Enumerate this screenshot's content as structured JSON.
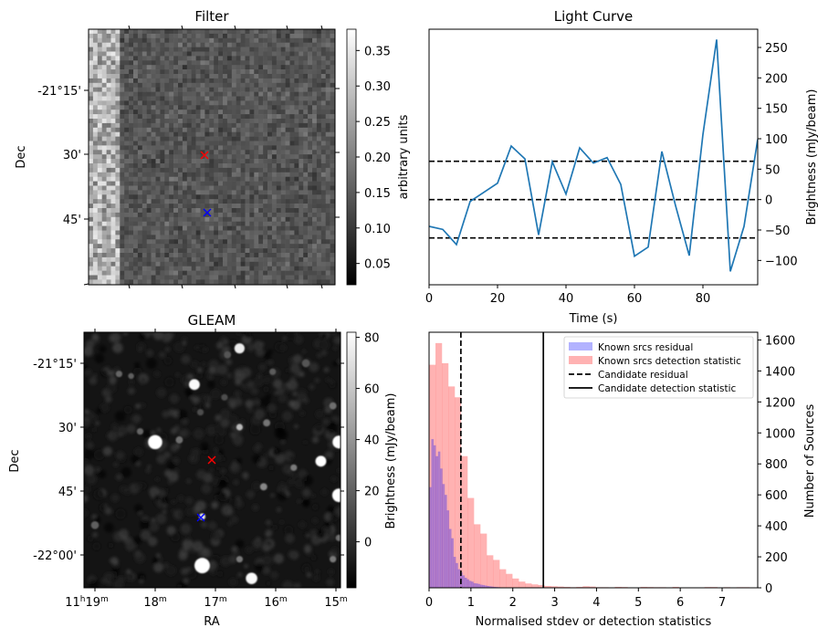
{
  "chart_data": [
    {
      "id": "filter",
      "type": "heatmap",
      "title": "Filter",
      "xlabel": "",
      "ylabel": "Dec",
      "y_ticks": [
        "-21°15'",
        "30'",
        "45'"
      ],
      "colorbar": {
        "label": "arbitrary units",
        "range": [
          0.02,
          0.38
        ],
        "ticks": [
          "0.05",
          "0.10",
          "0.15",
          "0.20",
          "0.25",
          "0.30",
          "0.35"
        ],
        "tick_values": [
          0.05,
          0.1,
          0.15,
          0.2,
          0.25,
          0.3,
          0.35
        ],
        "colormap": "gray"
      },
      "markers": [
        {
          "name": "candidate",
          "symbol": "x",
          "color": "#ff0000",
          "dec": "-21°30'"
        },
        {
          "name": "known-source",
          "symbol": "x",
          "color": "#0000ff",
          "dec": "-21°44'"
        }
      ],
      "notes": "Pixelated noise map, bright vertical band along left edge"
    },
    {
      "id": "light-curve",
      "type": "line",
      "title": "Light Curve",
      "xlabel": "Time (s)",
      "ylabel": "Brightness (mJy/beam)",
      "xlim": [
        0,
        96
      ],
      "ylim": [
        -140,
        280
      ],
      "x_ticks": [
        0,
        20,
        40,
        60,
        80
      ],
      "y_ticks": [
        -100,
        -50,
        0,
        50,
        100,
        150,
        200,
        250
      ],
      "y_tick_labels": [
        "−100",
        "−50",
        "0",
        "50",
        "100",
        "150",
        "200",
        "250"
      ],
      "series": [
        {
          "name": "light curve",
          "color": "#1f77b4",
          "x": [
            0,
            4,
            8,
            12,
            16,
            20,
            24,
            28,
            32,
            36,
            40,
            44,
            48,
            52,
            56,
            60,
            64,
            68,
            72,
            76,
            80,
            84,
            88,
            92,
            96
          ],
          "y": [
            -44,
            -49,
            -74,
            -3,
            12,
            27,
            88,
            67,
            -58,
            62,
            9,
            85,
            60,
            69,
            25,
            -93,
            -78,
            79,
            -10,
            -92,
            107,
            263,
            -118,
            -44,
            99
          ]
        }
      ],
      "hlines": [
        {
          "y": 63,
          "style": "dashed",
          "color": "#000000"
        },
        {
          "y": 0,
          "style": "dashed",
          "color": "#000000"
        },
        {
          "y": -63,
          "style": "dashed",
          "color": "#000000"
        }
      ]
    },
    {
      "id": "gleam",
      "type": "heatmap",
      "title": "GLEAM",
      "xlabel": "RA",
      "ylabel": "Dec",
      "x_ticks": [
        {
          "h": "11",
          "m": "19"
        },
        {
          "h": "",
          "m": "18"
        },
        {
          "h": "",
          "m": "17"
        },
        {
          "h": "",
          "m": "16"
        },
        {
          "h": "",
          "m": "15"
        }
      ],
      "y_ticks": [
        "-21°15'",
        "30'",
        "45'",
        "-22°00'"
      ],
      "colorbar": {
        "label": "Brightness (mJy/beam)",
        "range": [
          -18,
          82
        ],
        "ticks": [
          "0",
          "20",
          "40",
          "60",
          "80"
        ],
        "tick_values": [
          0,
          20,
          40,
          60,
          80
        ],
        "colormap": "gray"
      },
      "markers": [
        {
          "name": "candidate",
          "symbol": "x",
          "color": "#ff0000",
          "ra": "11h17m02s",
          "dec": "-21°37'"
        },
        {
          "name": "known-source",
          "symbol": "x",
          "color": "#0000ff",
          "ra": "11h17m13s",
          "dec": "-21°51'"
        }
      ],
      "sources": [
        {
          "ra_min": 18.0,
          "dec_min": 33.5,
          "flux": 90,
          "size": 1.6
        },
        {
          "ra_min": 17.22,
          "dec_min": 62.5,
          "flux": 95,
          "size": 1.8
        },
        {
          "ra_min": 17.35,
          "dec_min": 20.0,
          "flux": 80,
          "size": 1.1
        },
        {
          "ra_min": 16.6,
          "dec_min": 11.5,
          "flux": 75,
          "size": 1.0
        },
        {
          "ra_min": 16.6,
          "dec_min": 30.0,
          "flux": 55,
          "size": 1.0
        },
        {
          "ra_min": 15.25,
          "dec_min": 38.0,
          "flux": 85,
          "size": 1.1
        },
        {
          "ra_min": 14.95,
          "dec_min": 33.5,
          "flux": 90,
          "size": 1.4
        },
        {
          "ra_min": 14.95,
          "dec_min": 46.0,
          "flux": 90,
          "size": 1.5
        },
        {
          "ra_min": 16.4,
          "dec_min": 65.5,
          "flux": 80,
          "size": 1.2
        },
        {
          "ra_min": 17.22,
          "dec_min": 51.0,
          "flux": 70,
          "size": 1.0
        },
        {
          "ra_min": 16.2,
          "dec_min": 44.0,
          "flux": 35,
          "size": 1.1
        },
        {
          "ra_min": 15.7,
          "dec_min": 39.5,
          "flux": 30,
          "size": 1.0
        },
        {
          "ra_min": 16.15,
          "dec_min": 29.0,
          "flux": 28,
          "size": 1.1
        },
        {
          "ra_min": 15.05,
          "dec_min": 25.0,
          "flux": 25,
          "size": 1.1
        },
        {
          "ra_min": 17.6,
          "dec_min": 33.0,
          "flux": 25,
          "size": 1.1
        },
        {
          "ra_min": 18.25,
          "dec_min": 31.0,
          "flux": 22,
          "size": 1.0
        },
        {
          "ra_min": 18.6,
          "dec_min": 17.5,
          "flux": 22,
          "size": 1.0
        },
        {
          "ra_min": 18.4,
          "dec_min": 18.0,
          "flux": 20,
          "size": 0.9
        },
        {
          "ra_min": 16.05,
          "dec_min": 17.0,
          "flux": 18,
          "size": 1.0
        },
        {
          "ra_min": 15.5,
          "dec_min": 15.0,
          "flux": 15,
          "size": 1.2
        },
        {
          "ra_min": 16.6,
          "dec_min": 61.0,
          "flux": 30,
          "size": 1.0
        },
        {
          "ra_min": 15.05,
          "dec_min": 61.0,
          "flux": 30,
          "size": 1.0
        },
        {
          "ra_min": 19.0,
          "dec_min": 53.0,
          "flux": 20,
          "size": 1.2
        },
        {
          "ra_min": 16.8,
          "dec_min": 13.0,
          "flux": 15,
          "size": 1.1
        },
        {
          "ra_min": 16.85,
          "dec_min": 23.0,
          "flux": 12,
          "size": 1.0
        },
        {
          "ra_min": 17.25,
          "dec_min": 26.5,
          "flux": 12,
          "size": 1.0
        },
        {
          "ra_min": 14.95,
          "dec_min": 56.0,
          "flux": 25,
          "size": 1.0
        }
      ]
    },
    {
      "id": "histogram",
      "type": "bar",
      "title": "",
      "xlabel": "Normalised stdev or detection statistics",
      "ylabel": "Number of Sources",
      "xlim": [
        0,
        7.85
      ],
      "ylim": [
        0,
        1650
      ],
      "x_ticks": [
        0,
        1,
        2,
        3,
        4,
        5,
        6,
        7
      ],
      "y_ticks": [
        0,
        200,
        400,
        600,
        800,
        1000,
        1200,
        1400,
        1600
      ],
      "series": [
        {
          "name": "Known srcs residual",
          "color": "#0000ff",
          "alpha": 0.3,
          "bin_width": 0.053,
          "bin_start": 0,
          "values": [
            650,
            960,
            920,
            850,
            880,
            770,
            670,
            600,
            500,
            380,
            320,
            200,
            160,
            120,
            100,
            80,
            65,
            55,
            45,
            40,
            30,
            28,
            25,
            20,
            18,
            15,
            12,
            10,
            8,
            6,
            5,
            4,
            3,
            2
          ]
        },
        {
          "name": "Known srcs detection statistic",
          "color": "#ff0000",
          "alpha": 0.3,
          "bin_width": 0.153,
          "bin_start": 0,
          "values": [
            1440,
            1580,
            1450,
            1300,
            1230,
            850,
            580,
            410,
            350,
            210,
            180,
            120,
            90,
            60,
            40,
            28,
            22,
            18,
            12,
            10,
            8,
            6,
            4,
            6,
            10,
            8,
            4,
            4,
            3,
            6,
            5,
            3,
            2,
            6,
            5,
            4,
            4,
            3,
            6,
            2,
            3,
            3,
            2,
            5,
            5,
            2,
            4,
            2,
            4,
            4,
            2
          ]
        }
      ],
      "vlines": [
        {
          "name": "Candidate residual",
          "x": 0.76,
          "style": "dashed",
          "color": "#000000"
        },
        {
          "name": "Candidate detection statistic",
          "x": 2.73,
          "style": "solid",
          "color": "#000000"
        }
      ],
      "legend": {
        "placement": "top-right",
        "entries": [
          {
            "label": "Known srcs residual",
            "kind": "patch",
            "color": "#b2b2ff"
          },
          {
            "label": "Known srcs detection statistic",
            "kind": "patch",
            "color": "#ffb2b2"
          },
          {
            "label": "Candidate residual",
            "kind": "dashed-line",
            "color": "#000000"
          },
          {
            "label": "Candidate detection statistic",
            "kind": "solid-line",
            "color": "#000000"
          }
        ]
      }
    }
  ]
}
